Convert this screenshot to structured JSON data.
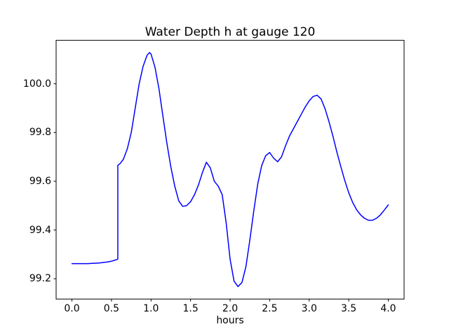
{
  "chart_data": {
    "type": "line",
    "title": "Water Depth h at gauge 120",
    "xlabel": "hours",
    "ylabel": "",
    "legend": "none",
    "grid": false,
    "line_color": "#0000ff",
    "axes_color": "#000000",
    "background_color": "#ffffff",
    "xlim": [
      -0.2,
      4.2
    ],
    "ylim": [
      99.1168,
      100.1783
    ],
    "xticks": {
      "values": [
        0.0,
        0.5,
        1.0,
        1.5,
        2.0,
        2.5,
        3.0,
        3.5,
        4.0
      ],
      "labels": [
        "0.0",
        "0.5",
        "1.0",
        "1.5",
        "2.0",
        "2.5",
        "3.0",
        "3.5",
        "4.0"
      ]
    },
    "yticks": {
      "values": [
        99.2,
        99.4,
        99.6,
        99.8,
        100.0
      ],
      "labels": [
        "99.2",
        "99.4",
        "99.6",
        "99.8",
        "100.0"
      ]
    },
    "series": [
      {
        "name": "h",
        "x": [
          0.0,
          0.05,
          0.1,
          0.15,
          0.2,
          0.25,
          0.3,
          0.35,
          0.4,
          0.45,
          0.5,
          0.54,
          0.57,
          0.58,
          0.58,
          0.61,
          0.65,
          0.7,
          0.75,
          0.8,
          0.85,
          0.9,
          0.95,
          0.98,
          1.0,
          1.05,
          1.1,
          1.15,
          1.2,
          1.25,
          1.3,
          1.35,
          1.4,
          1.45,
          1.5,
          1.55,
          1.6,
          1.65,
          1.7,
          1.75,
          1.8,
          1.85,
          1.9,
          1.95,
          2.0,
          2.05,
          2.1,
          2.15,
          2.2,
          2.25,
          2.3,
          2.35,
          2.4,
          2.45,
          2.5,
          2.55,
          2.6,
          2.65,
          2.7,
          2.75,
          2.8,
          2.85,
          2.9,
          2.95,
          3.0,
          3.05,
          3.1,
          3.15,
          3.2,
          3.25,
          3.3,
          3.35,
          3.4,
          3.45,
          3.5,
          3.55,
          3.6,
          3.65,
          3.7,
          3.75,
          3.8,
          3.85,
          3.9,
          3.95,
          4.0
        ],
        "y": [
          99.262,
          99.262,
          99.262,
          99.262,
          99.262,
          99.263,
          99.264,
          99.265,
          99.267,
          99.269,
          99.272,
          99.276,
          99.279,
          99.281,
          99.665,
          99.673,
          99.69,
          99.733,
          99.8,
          99.9,
          100.0,
          100.072,
          100.117,
          100.128,
          100.122,
          100.068,
          99.98,
          99.868,
          99.757,
          99.66,
          99.58,
          99.52,
          99.497,
          99.5,
          99.516,
          99.545,
          99.585,
          99.636,
          99.678,
          99.655,
          99.6,
          99.58,
          99.545,
          99.43,
          99.28,
          99.19,
          99.168,
          99.185,
          99.25,
          99.36,
          99.48,
          99.59,
          99.665,
          99.705,
          99.718,
          99.695,
          99.68,
          99.7,
          99.745,
          99.785,
          99.815,
          99.845,
          99.875,
          99.905,
          99.93,
          99.948,
          99.953,
          99.938,
          99.898,
          99.845,
          99.785,
          99.72,
          99.66,
          99.603,
          99.553,
          99.513,
          99.483,
          99.462,
          99.448,
          99.44,
          99.44,
          99.448,
          99.462,
          99.482,
          99.503
        ]
      }
    ]
  }
}
